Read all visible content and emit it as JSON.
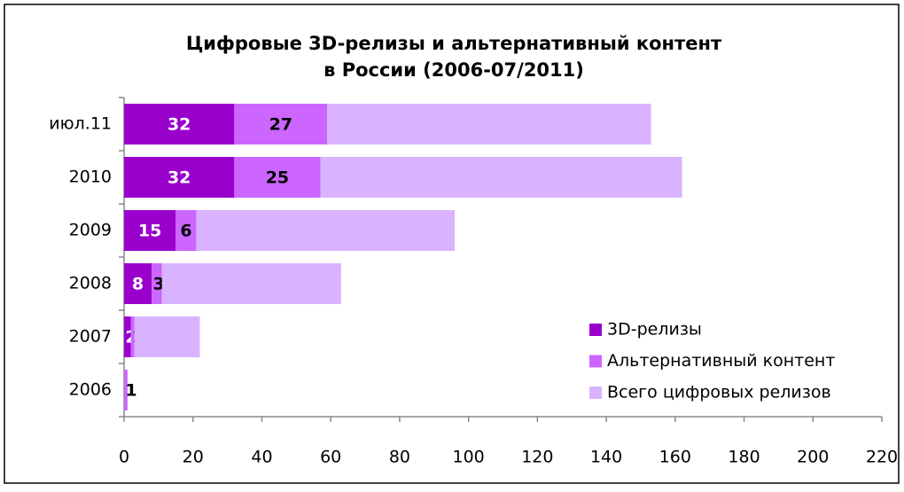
{
  "chart_data": {
    "type": "stacked_barh",
    "title": [
      "Цифровые 3D-релизы и альтернативный контент",
      "в России (2006-07/2011)"
    ],
    "categories": [
      "июл.11",
      "2010",
      "2009",
      "2008",
      "2007",
      "2006"
    ],
    "series": [
      {
        "name": "3D-релизы",
        "color": "#9900cc",
        "label_color": "#ffffff",
        "show_labels": true,
        "values": [
          32,
          32,
          15,
          8,
          2,
          0
        ]
      },
      {
        "name": "Альтернативный контент",
        "color": "#cc66ff",
        "label_color": "#000000",
        "show_labels": true,
        "values": [
          27,
          25,
          6,
          3,
          1,
          1
        ]
      },
      {
        "name": "Всего цифровых релизов",
        "color": "#d9b3ff",
        "label_color": "#000000",
        "show_labels": false,
        "values": [
          94,
          105,
          75,
          52,
          19,
          0
        ]
      }
    ],
    "xlim": [
      0,
      220
    ],
    "xticks": [
      0,
      20,
      40,
      60,
      80,
      100,
      120,
      140,
      160,
      180,
      200,
      220
    ],
    "grid": false,
    "legend": "lower right"
  }
}
